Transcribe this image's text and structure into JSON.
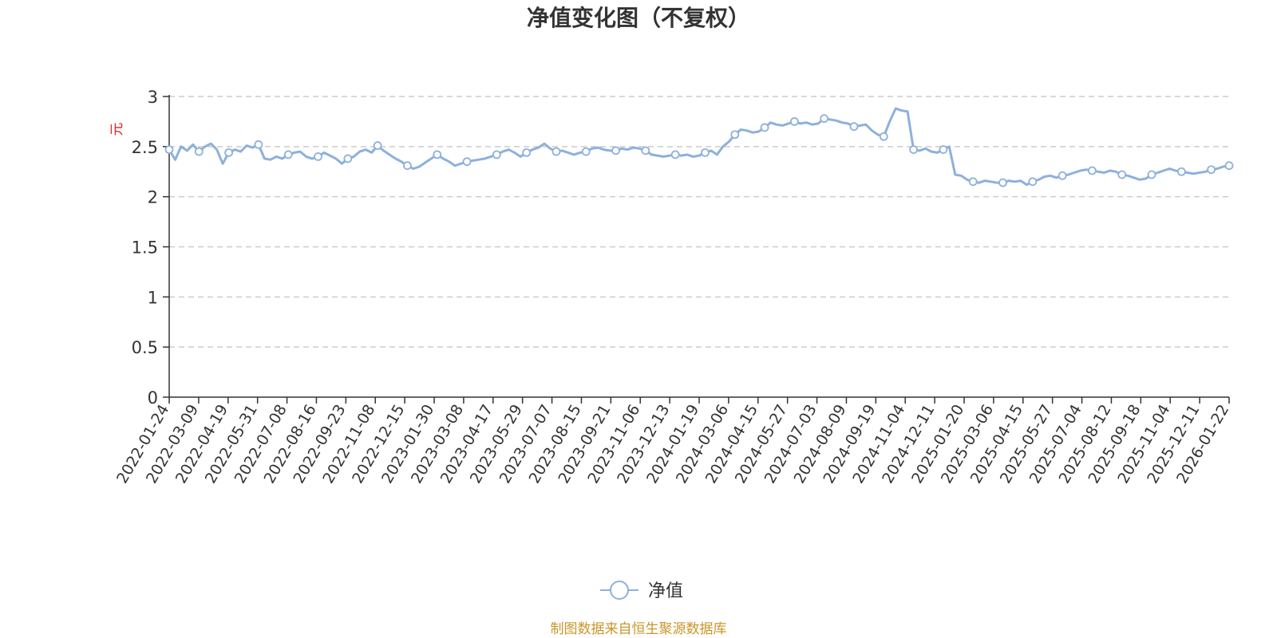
{
  "chart_data": {
    "type": "line",
    "title": "净值变化图（不复权）",
    "ylabel": "元",
    "ylim": [
      0,
      3
    ],
    "yticks": [
      0,
      0.5,
      1,
      1.5,
      2,
      2.5,
      3
    ],
    "ytick_labels": [
      "0",
      "0.5",
      "1",
      "1.5",
      "2",
      "2.5",
      "3"
    ],
    "grid": true,
    "legend_position": "bottom-center",
    "x_tick_labels": [
      "2022-01-24",
      "2022-03-09",
      "2022-04-19",
      "2022-05-31",
      "2022-07-08",
      "2022-08-16",
      "2022-09-23",
      "2022-11-08",
      "2022-12-15",
      "2023-01-30",
      "2023-03-08",
      "2023-04-17",
      "2023-05-29",
      "2023-07-07",
      "2023-08-15",
      "2023-09-21",
      "2023-11-06",
      "2023-12-13",
      "2024-01-19",
      "2024-03-06",
      "2024-04-15",
      "2024-05-27",
      "2024-07-03",
      "2024-08-09",
      "2024-09-19",
      "2024-11-04",
      "2024-12-11",
      "2025-01-20",
      "2025-03-06",
      "2025-04-15",
      "2025-05-27",
      "2025-07-04",
      "2025-08-12",
      "2025-09-18",
      "2025-11-04",
      "2025-12-11",
      "2026-01-22"
    ],
    "series": [
      {
        "name": "净值",
        "color": "#8eb0dc",
        "values": [
          2.47,
          2.37,
          2.5,
          2.46,
          2.52,
          2.45,
          2.5,
          2.53,
          2.47,
          2.33,
          2.44,
          2.47,
          2.45,
          2.51,
          2.49,
          2.52,
          2.38,
          2.37,
          2.4,
          2.38,
          2.42,
          2.44,
          2.45,
          2.4,
          2.38,
          2.4,
          2.44,
          2.41,
          2.38,
          2.33,
          2.38,
          2.4,
          2.45,
          2.47,
          2.44,
          2.51,
          2.46,
          2.42,
          2.38,
          2.35,
          2.31,
          2.28,
          2.3,
          2.34,
          2.38,
          2.42,
          2.38,
          2.35,
          2.31,
          2.33,
          2.35,
          2.36,
          2.37,
          2.38,
          2.4,
          2.42,
          2.45,
          2.47,
          2.44,
          2.4,
          2.44,
          2.47,
          2.49,
          2.53,
          2.48,
          2.45,
          2.46,
          2.44,
          2.42,
          2.44,
          2.45,
          2.48,
          2.49,
          2.47,
          2.46,
          2.46,
          2.48,
          2.47,
          2.49,
          2.48,
          2.46,
          2.42,
          2.41,
          2.4,
          2.41,
          2.42,
          2.41,
          2.42,
          2.4,
          2.41,
          2.44,
          2.46,
          2.42,
          2.5,
          2.55,
          2.62,
          2.67,
          2.66,
          2.64,
          2.65,
          2.69,
          2.74,
          2.72,
          2.71,
          2.73,
          2.75,
          2.73,
          2.74,
          2.72,
          2.73,
          2.78,
          2.77,
          2.76,
          2.74,
          2.73,
          2.7,
          2.71,
          2.72,
          2.66,
          2.62,
          2.6,
          2.75,
          2.88,
          2.86,
          2.85,
          2.47,
          2.46,
          2.48,
          2.45,
          2.44,
          2.47,
          2.5,
          2.22,
          2.21,
          2.17,
          2.15,
          2.14,
          2.16,
          2.15,
          2.14,
          2.14,
          2.16,
          2.15,
          2.16,
          2.12,
          2.15,
          2.17,
          2.2,
          2.21,
          2.19,
          2.21,
          2.22,
          2.24,
          2.26,
          2.27,
          2.26,
          2.25,
          2.24,
          2.26,
          2.25,
          2.22,
          2.21,
          2.19,
          2.17,
          2.18,
          2.22,
          2.24,
          2.26,
          2.28,
          2.26,
          2.25,
          2.24,
          2.23,
          2.24,
          2.25,
          2.27,
          2.28,
          2.3,
          2.31
        ]
      }
    ]
  },
  "legend": {
    "label": "净值"
  },
  "source_text": "制图数据来自恒生聚源数据库"
}
